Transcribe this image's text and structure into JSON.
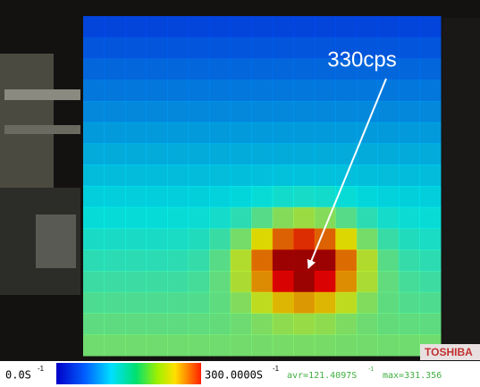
{
  "annotation": "330cps",
  "scale": {
    "min_label": "0.0S",
    "min_exp": "-1",
    "max_label": "300.0000S",
    "max_exp": "-1",
    "avr_label": "avr=121.4097S",
    "avr_exp": "-1",
    "max_reading": "max=331.356"
  },
  "brand": "TOSHIBA"
}
